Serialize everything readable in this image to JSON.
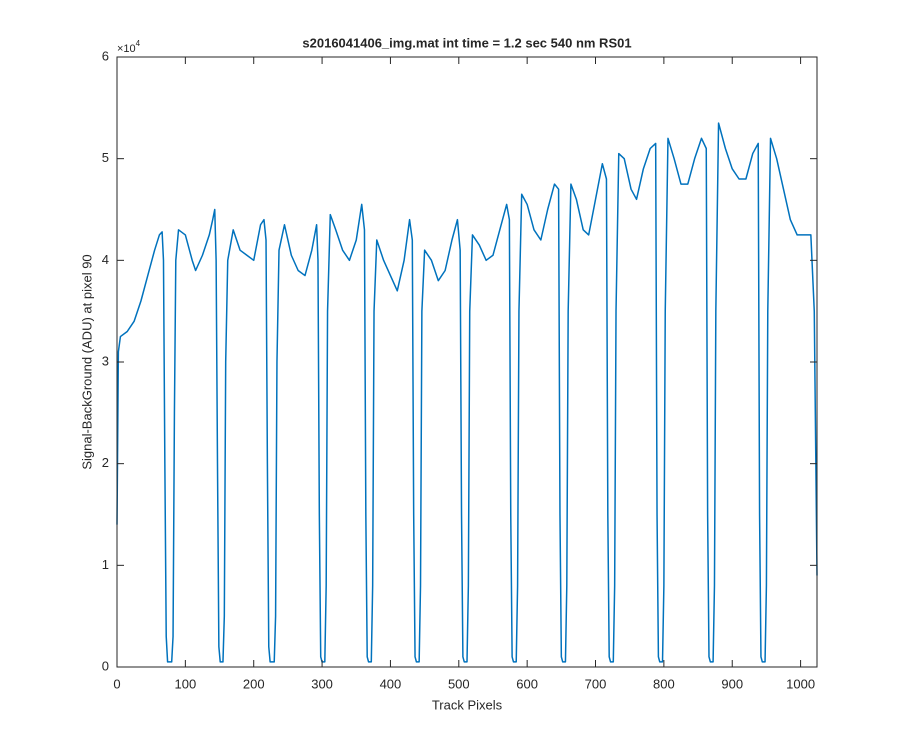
{
  "chart_data": {
    "type": "line",
    "title": "s2016041406_img.mat int time = 1.2 sec  540 nm RS01",
    "xlabel": "Track Pixels",
    "ylabel": "Signal-BackGround (ADU) at pixel 90",
    "y_exponent": {
      "base": "×10",
      "power": "4"
    },
    "color": "#0072bd",
    "xlim": [
      0,
      1024
    ],
    "ylim": [
      0,
      60000
    ],
    "xticks": [
      0,
      100,
      200,
      300,
      400,
      500,
      600,
      700,
      800,
      900,
      1000
    ],
    "yticks": [
      0,
      {
        "value": 10000,
        "label": "1"
      },
      {
        "value": 20000,
        "label": "2"
      },
      {
        "value": 30000,
        "label": "3"
      },
      {
        "value": 40000,
        "label": "4"
      },
      {
        "value": 50000,
        "label": "5"
      },
      {
        "value": 60000,
        "label": "6"
      }
    ],
    "grid": false,
    "x": [
      0,
      2,
      5,
      15,
      25,
      35,
      45,
      55,
      62,
      66,
      68,
      70,
      72,
      74,
      80,
      82,
      84,
      86,
      90,
      100,
      110,
      115,
      125,
      135,
      140,
      143,
      145,
      147,
      149,
      151,
      155,
      157,
      159,
      162,
      170,
      180,
      190,
      200,
      210,
      215,
      218,
      220,
      222,
      224,
      230,
      232,
      234,
      237,
      245,
      255,
      265,
      275,
      285,
      292,
      294,
      296,
      298,
      300,
      304,
      306,
      308,
      312,
      320,
      330,
      340,
      350,
      358,
      362,
      364,
      366,
      368,
      372,
      374,
      376,
      380,
      390,
      400,
      410,
      420,
      428,
      432,
      434,
      436,
      438,
      442,
      444,
      446,
      450,
      460,
      470,
      480,
      490,
      498,
      502,
      504,
      506,
      508,
      512,
      514,
      516,
      520,
      530,
      540,
      550,
      560,
      570,
      574,
      576,
      578,
      580,
      584,
      586,
      588,
      592,
      600,
      610,
      620,
      630,
      640,
      646,
      648,
      650,
      652,
      656,
      658,
      660,
      664,
      672,
      682,
      690,
      700,
      710,
      716,
      718,
      720,
      722,
      726,
      728,
      730,
      734,
      742,
      752,
      760,
      770,
      780,
      788,
      790,
      792,
      794,
      798,
      800,
      802,
      806,
      815,
      825,
      835,
      845,
      855,
      862,
      864,
      866,
      868,
      872,
      874,
      876,
      880,
      890,
      900,
      910,
      920,
      930,
      938,
      940,
      942,
      944,
      948,
      950,
      952,
      956,
      965,
      975,
      985,
      995,
      1005,
      1015,
      1020,
      1024
    ],
    "values": [
      14000,
      31000,
      32500,
      33000,
      34000,
      36000,
      38500,
      41000,
      42500,
      42800,
      40000,
      20000,
      3000,
      500,
      500,
      3000,
      25000,
      40000,
      43000,
      42500,
      40000,
      39000,
      40500,
      42500,
      44000,
      45000,
      40000,
      20000,
      2000,
      500,
      500,
      5000,
      30000,
      40000,
      43000,
      41000,
      40500,
      40000,
      43500,
      44000,
      42000,
      20000,
      2000,
      500,
      500,
      5000,
      30000,
      41000,
      43500,
      40500,
      39000,
      38500,
      41000,
      43500,
      40000,
      15000,
      1000,
      500,
      500,
      8000,
      35000,
      44500,
      43000,
      41000,
      40000,
      42000,
      45500,
      43000,
      15000,
      1000,
      500,
      500,
      8000,
      35000,
      42000,
      40000,
      38500,
      37000,
      40000,
      44000,
      42000,
      15000,
      1000,
      500,
      500,
      8000,
      35000,
      41000,
      40000,
      38000,
      39000,
      42000,
      44000,
      41000,
      15000,
      1000,
      500,
      500,
      8000,
      35000,
      42500,
      41500,
      40000,
      40500,
      43000,
      45500,
      44000,
      15000,
      1000,
      500,
      500,
      8000,
      35000,
      46500,
      45500,
      43000,
      42000,
      45000,
      47500,
      47000,
      15000,
      1000,
      500,
      500,
      8000,
      35000,
      47500,
      46000,
      43000,
      42500,
      46000,
      49500,
      48000,
      15000,
      1000,
      500,
      500,
      8000,
      35000,
      50500,
      50000,
      47000,
      46000,
      49000,
      51000,
      51500,
      15000,
      1000,
      500,
      500,
      8000,
      35000,
      52000,
      50000,
      47500,
      47500,
      50000,
      52000,
      51000,
      15000,
      1000,
      500,
      500,
      8000,
      35000,
      53500,
      51000,
      49000,
      48000,
      48000,
      50500,
      51500,
      15000,
      1000,
      500,
      500,
      8000,
      35000,
      52000,
      50000,
      47000,
      44000,
      42500,
      42500,
      42500,
      35000,
      9000
    ]
  }
}
